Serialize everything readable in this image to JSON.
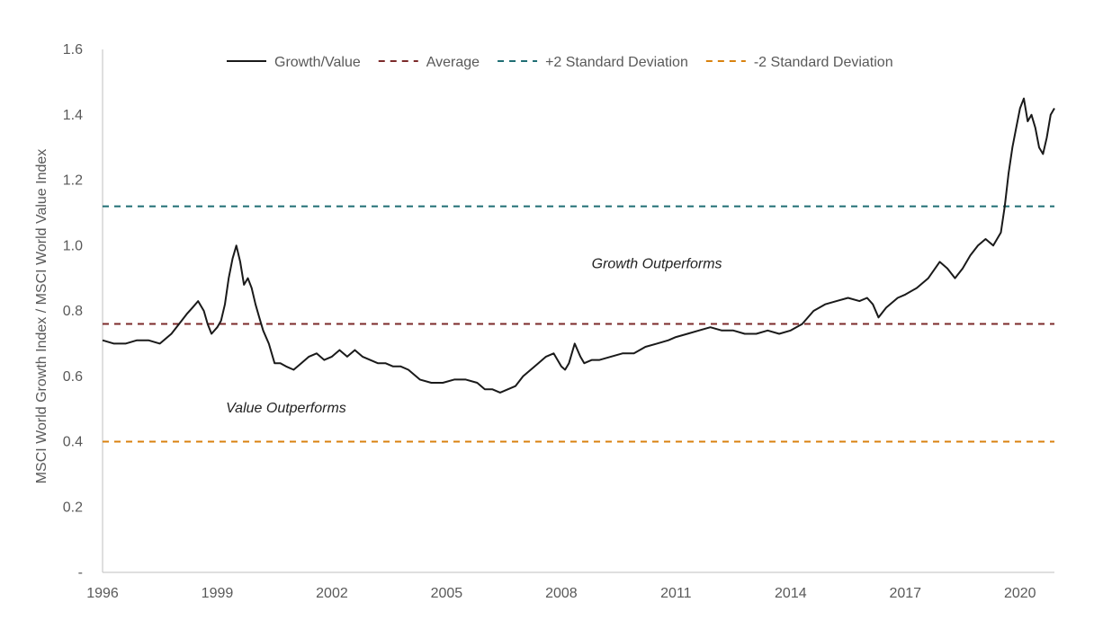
{
  "chart_data": {
    "type": "line",
    "title": "",
    "xlabel": "",
    "ylabel": "MSCI World Growth Index / MSCI World Value Index",
    "xlim": [
      1996,
      2020.9
    ],
    "ylim": [
      0,
      1.6
    ],
    "x_ticks": [
      "1996",
      "1999",
      "2002",
      "2005",
      "2008",
      "2011",
      "2014",
      "2017",
      "2020"
    ],
    "y_ticks": [
      {
        "value": 0,
        "label": "-"
      },
      {
        "value": 0.2,
        "label": "0.2"
      },
      {
        "value": 0.4,
        "label": "0.4"
      },
      {
        "value": 0.6,
        "label": "0.6"
      },
      {
        "value": 0.8,
        "label": "0.8"
      },
      {
        "value": 1.0,
        "label": "1.0"
      },
      {
        "value": 1.2,
        "label": "1.2"
      },
      {
        "value": 1.4,
        "label": "1.4"
      },
      {
        "value": 1.6,
        "label": "1.6"
      }
    ],
    "grid": false,
    "legend_position": "top",
    "series": [
      {
        "name": "Growth/Value",
        "color": "#1a1a1a",
        "style": "solid",
        "x": [
          1996.0,
          1996.3,
          1996.6,
          1996.9,
          1997.2,
          1997.5,
          1997.8,
          1998.0,
          1998.2,
          1998.35,
          1998.5,
          1998.65,
          1998.75,
          1998.85,
          1999.0,
          1999.1,
          1999.2,
          1999.3,
          1999.4,
          1999.5,
          1999.6,
          1999.7,
          1999.8,
          1999.9,
          2000.0,
          2000.1,
          2000.2,
          2000.35,
          2000.5,
          2000.65,
          2000.8,
          2001.0,
          2001.2,
          2001.4,
          2001.6,
          2001.8,
          2002.0,
          2002.2,
          2002.4,
          2002.6,
          2002.8,
          2003.0,
          2003.2,
          2003.4,
          2003.6,
          2003.8,
          2004.0,
          2004.3,
          2004.6,
          2004.9,
          2005.2,
          2005.5,
          2005.8,
          2006.0,
          2006.2,
          2006.4,
          2006.6,
          2006.8,
          2007.0,
          2007.2,
          2007.4,
          2007.6,
          2007.8,
          2008.0,
          2008.1,
          2008.2,
          2008.35,
          2008.5,
          2008.6,
          2008.8,
          2009.0,
          2009.3,
          2009.6,
          2009.9,
          2010.2,
          2010.5,
          2010.8,
          2011.0,
          2011.3,
          2011.6,
          2011.9,
          2012.2,
          2012.5,
          2012.8,
          2013.1,
          2013.4,
          2013.7,
          2014.0,
          2014.3,
          2014.6,
          2014.9,
          2015.2,
          2015.5,
          2015.8,
          2016.0,
          2016.15,
          2016.3,
          2016.5,
          2016.8,
          2017.0,
          2017.3,
          2017.6,
          2017.9,
          2018.1,
          2018.3,
          2018.5,
          2018.7,
          2018.9,
          2019.1,
          2019.3,
          2019.5,
          2019.6,
          2019.7,
          2019.8,
          2019.9,
          2020.0,
          2020.1,
          2020.2,
          2020.3,
          2020.4,
          2020.5,
          2020.6,
          2020.7,
          2020.8,
          2020.9
        ],
        "values": [
          0.71,
          0.7,
          0.7,
          0.71,
          0.71,
          0.7,
          0.73,
          0.76,
          0.79,
          0.81,
          0.83,
          0.8,
          0.76,
          0.73,
          0.75,
          0.77,
          0.82,
          0.9,
          0.96,
          1.0,
          0.95,
          0.88,
          0.9,
          0.87,
          0.82,
          0.78,
          0.74,
          0.7,
          0.64,
          0.64,
          0.63,
          0.62,
          0.64,
          0.66,
          0.67,
          0.65,
          0.66,
          0.68,
          0.66,
          0.68,
          0.66,
          0.65,
          0.64,
          0.64,
          0.63,
          0.63,
          0.62,
          0.59,
          0.58,
          0.58,
          0.59,
          0.59,
          0.58,
          0.56,
          0.56,
          0.55,
          0.56,
          0.57,
          0.6,
          0.62,
          0.64,
          0.66,
          0.67,
          0.63,
          0.62,
          0.64,
          0.7,
          0.66,
          0.64,
          0.65,
          0.65,
          0.66,
          0.67,
          0.67,
          0.69,
          0.7,
          0.71,
          0.72,
          0.73,
          0.74,
          0.75,
          0.74,
          0.74,
          0.73,
          0.73,
          0.74,
          0.73,
          0.74,
          0.76,
          0.8,
          0.82,
          0.83,
          0.84,
          0.83,
          0.84,
          0.82,
          0.78,
          0.81,
          0.84,
          0.85,
          0.87,
          0.9,
          0.95,
          0.93,
          0.9,
          0.93,
          0.97,
          1.0,
          1.02,
          1.0,
          1.04,
          1.12,
          1.22,
          1.3,
          1.36,
          1.42,
          1.45,
          1.38,
          1.4,
          1.36,
          1.3,
          1.28,
          1.33,
          1.4,
          1.42
        ]
      },
      {
        "name": "Average",
        "color": "#7b2a2a",
        "style": "dashed",
        "x": [
          1996,
          2020.9
        ],
        "values": [
          0.76,
          0.76
        ]
      },
      {
        "name": "+2 Standard Deviation",
        "color": "#1f6d73",
        "style": "dashed",
        "x": [
          1996,
          2020.9
        ],
        "values": [
          1.12,
          1.12
        ]
      },
      {
        "name": "-2 Standard Deviation",
        "color": "#d9820f",
        "style": "dashed",
        "x": [
          1996,
          2020.9
        ],
        "values": [
          0.4,
          0.4
        ]
      }
    ],
    "annotations": [
      {
        "text": "Growth Outperforms",
        "x": 2010.5,
        "y": 0.93
      },
      {
        "text": "Value Outperforms",
        "x": 2000.8,
        "y": 0.49
      }
    ]
  }
}
